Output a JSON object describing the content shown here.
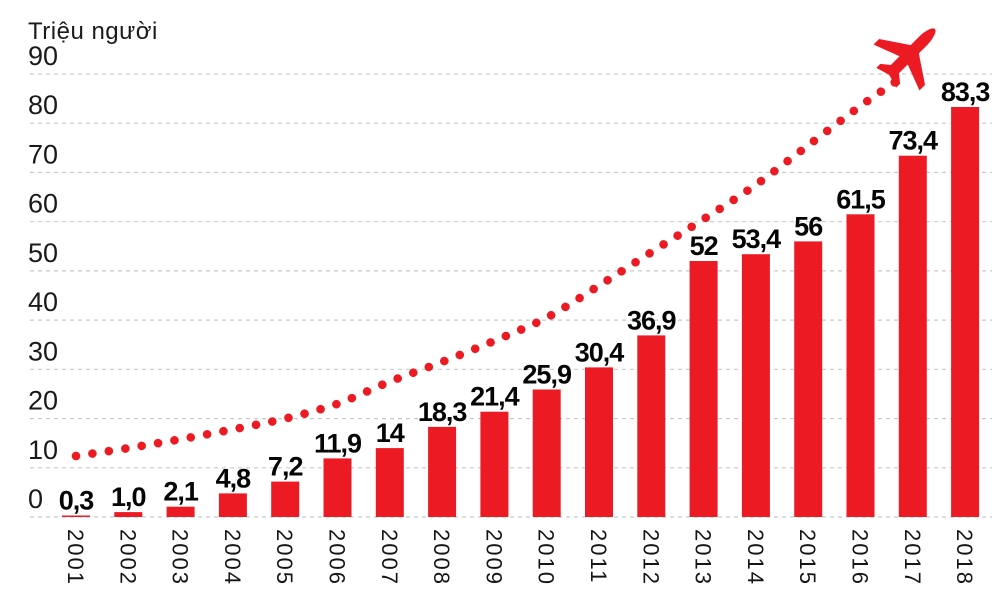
{
  "chart_data": {
    "type": "bar",
    "title": "",
    "y_axis_title": "Triệu người",
    "categories": [
      "2001",
      "2002",
      "2003",
      "2004",
      "2005",
      "2006",
      "2007",
      "2008",
      "2009",
      "2010",
      "2011",
      "2012",
      "2013",
      "2014",
      "2015",
      "2016",
      "2017",
      "2018"
    ],
    "values": [
      0.3,
      1.0,
      2.1,
      4.8,
      7.2,
      11.9,
      14,
      18.3,
      21.4,
      25.9,
      30.4,
      36.9,
      52,
      53.4,
      56,
      61.5,
      73.4,
      83.3
    ],
    "value_labels": [
      "0,3",
      "1,0",
      "2,1",
      "4,8",
      "7,2",
      "11,9",
      "14",
      "18,3",
      "21,4",
      "25,9",
      "30,4",
      "36,9",
      "52",
      "53,4",
      "56",
      "61,5",
      "73,4",
      "83,3"
    ],
    "y_ticks": [
      0,
      10,
      20,
      30,
      40,
      50,
      60,
      70,
      80,
      90
    ],
    "ylim": [
      0,
      90
    ],
    "grid": "horizontal-dashed",
    "legend_position": "none",
    "bar_color": "#ec1b23",
    "grid_color": "#c9c9c9",
    "text_color": "#151515",
    "trend_line": {
      "style": "dotted",
      "color": "#ec1b23",
      "endpoint_icon": "airplane-icon",
      "points_year_value": [
        [
          0,
          12.4
        ],
        [
          1,
          14
        ],
        [
          2,
          15.8
        ],
        [
          3,
          17.8
        ],
        [
          4,
          20
        ],
        [
          5,
          23
        ],
        [
          6,
          27.5
        ],
        [
          7,
          31.5
        ],
        [
          8,
          35.8
        ],
        [
          9,
          40.5
        ],
        [
          10,
          47
        ],
        [
          11,
          53.8
        ],
        [
          12,
          60.5
        ],
        [
          13,
          67.5
        ],
        [
          14,
          75.5
        ],
        [
          15,
          83.5
        ],
        [
          15.68,
          88.5
        ]
      ]
    }
  }
}
